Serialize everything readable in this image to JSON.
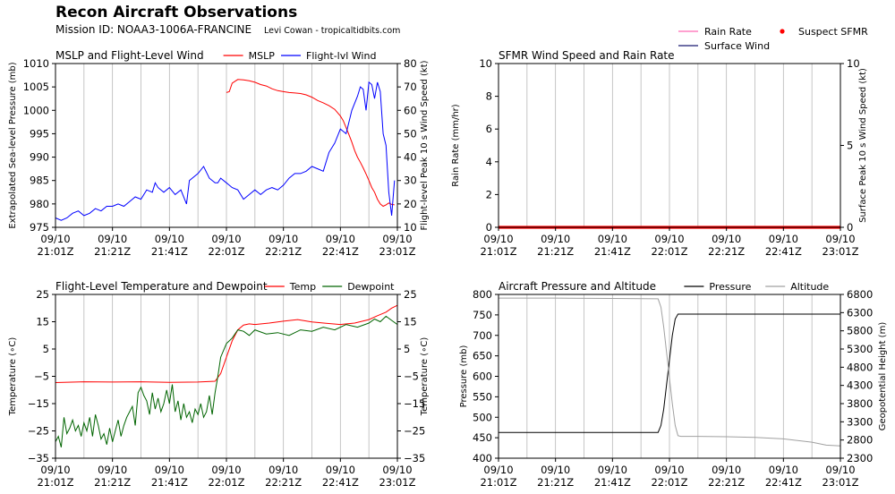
{
  "header": {
    "title": "Recon Aircraft Observations",
    "mission": "Mission ID: NOAA3-1006A-FRANCINE",
    "credit": "Levi Cowan - tropicaltidbits.com"
  },
  "top_legend": [
    {
      "label": "Rain Rate",
      "color": "#ff69b4",
      "kind": "line"
    },
    {
      "label": "Surface Wind",
      "color": "#191970",
      "kind": "line"
    },
    {
      "label": "Suspect SFMR",
      "color": "#ff0000",
      "kind": "dot"
    }
  ],
  "x_ticks": [
    {
      "l1": "09/10",
      "l2": "21:01Z"
    },
    {
      "l1": "09/10",
      "l2": "21:21Z"
    },
    {
      "l1": "09/10",
      "l2": "21:41Z"
    },
    {
      "l1": "09/10",
      "l2": "22:01Z"
    },
    {
      "l1": "09/10",
      "l2": "22:21Z"
    },
    {
      "l1": "09/10",
      "l2": "22:41Z"
    },
    {
      "l1": "09/10",
      "l2": "23:01Z"
    }
  ],
  "chart_data": [
    {
      "id": "p1",
      "type": "line",
      "title": "MSLP and Flight-Level Wind",
      "ylabel_left": "Extrapolated Sea-level Pressure (mb)",
      "ylabel_right": "Flight-level Peak 10 s Wind Speed (kt)",
      "xlim": [
        0,
        120
      ],
      "ylim_left": [
        975,
        1010
      ],
      "ylim_right": [
        10,
        80
      ],
      "yticks_left": [
        "975",
        "980",
        "985",
        "990",
        "995",
        "1000",
        "1005",
        "1010"
      ],
      "yticks_right": [
        "10",
        "20",
        "30",
        "40",
        "50",
        "60",
        "70",
        "80"
      ],
      "legend": [
        {
          "label": "MSLP",
          "color": "#ff0000"
        },
        {
          "label": "Flight-lvl Wind",
          "color": "#0000ff"
        }
      ],
      "series": [
        {
          "name": "MSLP",
          "axis": "left",
          "color": "#ff0000",
          "x": [
            60,
            61,
            62,
            64,
            66,
            68,
            70,
            72,
            74,
            76,
            78,
            80,
            82,
            84,
            86,
            88,
            90,
            92,
            94,
            96,
            98,
            100,
            101,
            102,
            103,
            104,
            105,
            106,
            107,
            108,
            109,
            110,
            111,
            112,
            113,
            114,
            115,
            116,
            117,
            118,
            119
          ],
          "y": [
            1003.8,
            1004.0,
            1005.8,
            1006.6,
            1006.5,
            1006.3,
            1006.0,
            1005.5,
            1005.2,
            1004.6,
            1004.2,
            1004.0,
            1003.8,
            1003.7,
            1003.6,
            1003.3,
            1002.8,
            1002.1,
            1001.6,
            1001.0,
            1000.2,
            998.8,
            997.8,
            996.3,
            994.8,
            993.2,
            991.4,
            990.0,
            988.9,
            987.7,
            986.4,
            985.0,
            983.5,
            982.5,
            981.0,
            980.0,
            979.5,
            979.8,
            980.2,
            979.9,
            979.8
          ]
        },
        {
          "name": "Flight-lvl Wind",
          "axis": "right",
          "color": "#0000ff",
          "x": [
            0,
            2,
            4,
            6,
            8,
            10,
            12,
            14,
            16,
            18,
            20,
            22,
            24,
            26,
            28,
            30,
            32,
            34,
            35,
            36,
            38,
            40,
            42,
            44,
            46,
            47,
            48,
            50,
            52,
            54,
            56,
            57,
            58,
            60,
            62,
            64,
            66,
            68,
            70,
            72,
            74,
            76,
            78,
            80,
            82,
            84,
            86,
            88,
            90,
            92,
            94,
            96,
            98,
            100,
            102,
            104,
            106,
            107,
            108,
            109,
            110,
            111,
            112,
            113,
            114,
            115,
            116,
            117,
            118,
            119
          ],
          "y": [
            14,
            13,
            14,
            16,
            17,
            15,
            16,
            18,
            17,
            19,
            19,
            20,
            19,
            21,
            23,
            22,
            26,
            25,
            29,
            27,
            25,
            27,
            24,
            26,
            20,
            30,
            31,
            33,
            36,
            31,
            29,
            29,
            31,
            29,
            27,
            26,
            22,
            24,
            26,
            24,
            26,
            27,
            26,
            28,
            31,
            33,
            33,
            34,
            36,
            35,
            34,
            42,
            46,
            52,
            50,
            60,
            66,
            70,
            69,
            60,
            72,
            71,
            65,
            72,
            68,
            50,
            45,
            25,
            15,
            30
          ]
        }
      ]
    },
    {
      "id": "p2",
      "type": "line",
      "title": "SFMR Wind Speed and Rain Rate",
      "ylabel_left": "Rain Rate (mm/hr)",
      "ylabel_right": "Surface Peak 10 s Wind Speed (kt)",
      "xlim": [
        0,
        120
      ],
      "ylim_left": [
        0,
        10
      ],
      "ylim_right": [
        0,
        10
      ],
      "yticks_left": [
        "0",
        "2",
        "4",
        "6",
        "8",
        "10"
      ],
      "yticks_right": [
        "0",
        "5",
        "10"
      ],
      "legend": [],
      "series": [
        {
          "name": "Suspect SFMR",
          "axis": "left",
          "color": "#ff0000",
          "x": [
            0,
            120
          ],
          "y": [
            0,
            0
          ]
        }
      ]
    },
    {
      "id": "p3",
      "type": "line",
      "title": "Flight-Level Temperature and Dewpoint",
      "ylabel_left": "Temperature (∘C)",
      "ylabel_right": "Temperature (∘C)",
      "xlim": [
        0,
        120
      ],
      "ylim_left": [
        -35,
        25
      ],
      "ylim_right": [
        -35,
        25
      ],
      "yticks_left": [
        "−35",
        "−25",
        "−15",
        "−5",
        "5",
        "15",
        "25"
      ],
      "yticks_right": [
        "−35",
        "−25",
        "−15",
        "−5",
        "5",
        "15",
        "25"
      ],
      "legend": [
        {
          "label": "Temp",
          "color": "#ff0000"
        },
        {
          "label": "Dewpoint",
          "color": "#006400"
        }
      ],
      "series": [
        {
          "name": "Temp",
          "axis": "left",
          "color": "#ff0000",
          "x": [
            0,
            10,
            20,
            30,
            40,
            50,
            56,
            58,
            60,
            62,
            64,
            66,
            68,
            70,
            75,
            80,
            85,
            90,
            95,
            100,
            105,
            110,
            113,
            116,
            118,
            120
          ],
          "y": [
            -7.3,
            -7.0,
            -7.1,
            -7.0,
            -7.2,
            -7.1,
            -6.8,
            -4,
            2,
            8,
            12,
            13.8,
            14.2,
            14.0,
            14.5,
            15.2,
            15.8,
            14.9,
            14.4,
            14.0,
            14.5,
            15.8,
            17.2,
            18.5,
            20.0,
            21.0
          ]
        },
        {
          "name": "Dewpoint",
          "axis": "left",
          "color": "#006400",
          "x": [
            0,
            1,
            2,
            3,
            4,
            5,
            6,
            7,
            8,
            9,
            10,
            11,
            12,
            13,
            14,
            15,
            16,
            17,
            18,
            19,
            20,
            21,
            22,
            23,
            24,
            25,
            26,
            27,
            28,
            29,
            30,
            31,
            32,
            33,
            34,
            35,
            36,
            37,
            38,
            39,
            40,
            41,
            42,
            43,
            44,
            45,
            46,
            47,
            48,
            49,
            50,
            51,
            52,
            53,
            54,
            55,
            56,
            57,
            58,
            60,
            62,
            64,
            66,
            68,
            70,
            74,
            78,
            82,
            86,
            90,
            94,
            98,
            102,
            106,
            110,
            112,
            114,
            116,
            118,
            120
          ],
          "y": [
            -29,
            -27,
            -31,
            -20,
            -26,
            -24,
            -21,
            -25,
            -23,
            -27,
            -22,
            -25,
            -20,
            -27,
            -19,
            -23,
            -28,
            -26,
            -30,
            -24,
            -29,
            -25,
            -21,
            -27,
            -23,
            -20,
            -18,
            -16,
            -23,
            -11,
            -9,
            -12,
            -14,
            -19,
            -11,
            -17,
            -13,
            -18,
            -15,
            -10,
            -15,
            -8,
            -18,
            -14,
            -21,
            -15,
            -20,
            -18,
            -22,
            -17,
            -19,
            -15,
            -20,
            -18,
            -12,
            -19,
            -11,
            -5,
            2,
            7,
            9,
            12,
            11.5,
            10,
            12,
            10.5,
            11,
            10,
            12,
            11.5,
            13,
            12,
            14,
            13,
            14.5,
            16,
            15,
            17,
            15.5,
            14
          ]
        }
      ]
    },
    {
      "id": "p4",
      "type": "line",
      "title": "Aircraft Pressure and Altitude",
      "ylabel_left": "Pressure (mb)",
      "ylabel_right": "Geopotential Height (m)",
      "xlim": [
        0,
        120
      ],
      "ylim_left": [
        400,
        800
      ],
      "ylim_right": [
        2300,
        6800
      ],
      "yticks_left": [
        "400",
        "450",
        "500",
        "550",
        "600",
        "650",
        "700",
        "750",
        "800"
      ],
      "yticks_right": [
        "2300",
        "2800",
        "3300",
        "3800",
        "4300",
        "4800",
        "5300",
        "5800",
        "6300",
        "6800"
      ],
      "legend": [
        {
          "label": "Pressure",
          "color": "#000000"
        },
        {
          "label": "Altitude",
          "color": "#a0a0a0"
        }
      ],
      "series": [
        {
          "name": "Pressure",
          "axis": "left",
          "color": "#000000",
          "x": [
            0,
            20,
            40,
            56,
            57,
            58,
            59,
            60,
            61,
            62,
            63,
            64,
            70,
            80,
            90,
            100,
            110,
            120
          ],
          "y": [
            463,
            463,
            463,
            463,
            480,
            520,
            580,
            640,
            700,
            740,
            752,
            752,
            752,
            752,
            752,
            752,
            752,
            752
          ]
        },
        {
          "name": "Altitude",
          "axis": "right",
          "color": "#a0a0a0",
          "x": [
            0,
            20,
            40,
            56,
            57,
            58,
            59,
            60,
            61,
            62,
            63,
            64,
            70,
            80,
            90,
            100,
            110,
            115,
            120
          ],
          "y": [
            6700,
            6700,
            6690,
            6680,
            6450,
            5900,
            5200,
            4500,
            3800,
            3200,
            2920,
            2900,
            2900,
            2890,
            2870,
            2830,
            2740,
            2660,
            2640
          ]
        }
      ]
    }
  ]
}
